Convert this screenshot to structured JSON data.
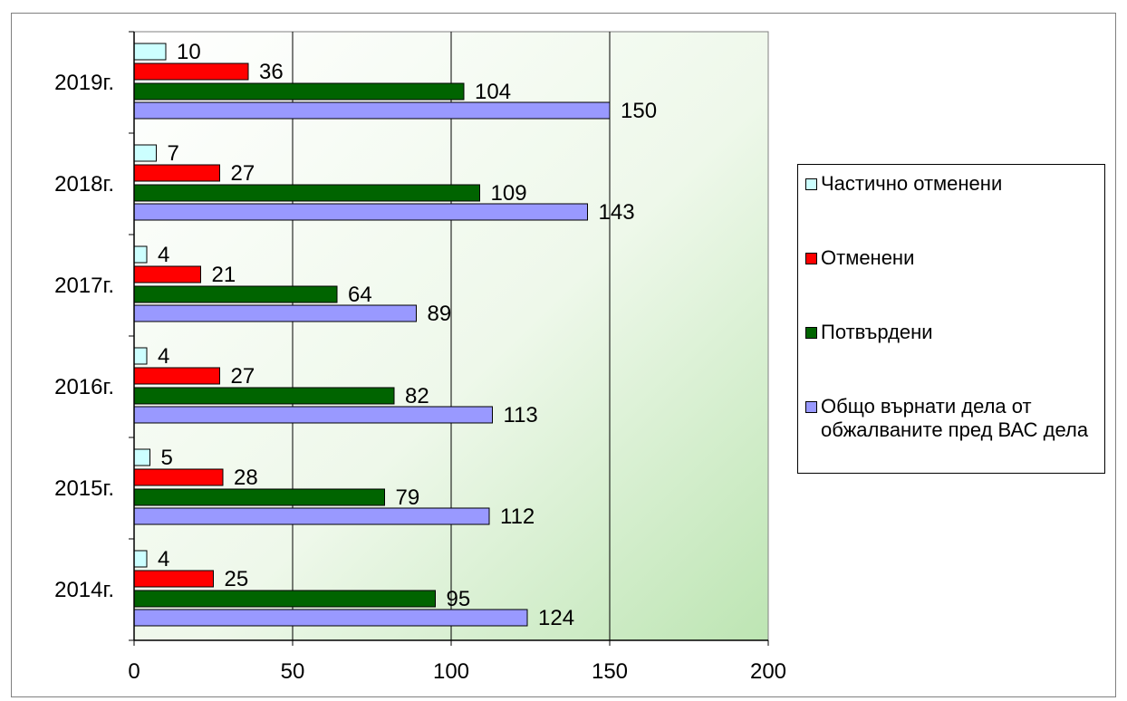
{
  "chart_data": {
    "type": "bar",
    "orientation": "horizontal",
    "title": "",
    "xlabel": "",
    "ylabel": "",
    "categories": [
      "2019г.",
      "2018г.",
      "2017г.",
      "2016г.",
      "2015г.",
      "2014г."
    ],
    "xlim": [
      0,
      200
    ],
    "xticks": [
      "0",
      "50",
      "100",
      "150",
      "200"
    ],
    "grid": true,
    "legend_position": "right",
    "series": [
      {
        "name": "Частично отменени",
        "color": "#ccffff",
        "values": [
          10,
          7,
          4,
          4,
          5,
          4
        ]
      },
      {
        "name": "Отменени",
        "color": "#ff0000",
        "values": [
          36,
          27,
          21,
          27,
          28,
          25
        ]
      },
      {
        "name": "Потвърдени",
        "color": "#006400",
        "values": [
          104,
          109,
          64,
          82,
          79,
          95
        ]
      },
      {
        "name": "Общо върнати дела от обжалваните пред ВАС дела",
        "color": "#9999ff",
        "values": [
          150,
          143,
          89,
          113,
          112,
          124
        ]
      }
    ],
    "legend": [
      {
        "label": "Частично отменени"
      },
      {
        "label": "Отменени"
      },
      {
        "label": "Потвърдени"
      },
      {
        "label": "Общо върнати дела от обжалваните пред ВАС дела"
      }
    ]
  }
}
